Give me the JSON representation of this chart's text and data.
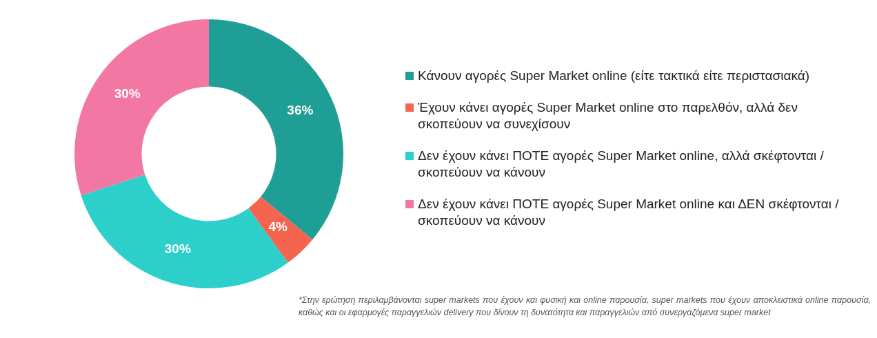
{
  "chart_data": {
    "type": "donut",
    "categories": [
      "Κάνουν αγορές Super Market online (είτε τακτικά είτε περιστασιακά)",
      "Έχουν κάνει αγορές Super Market online στο παρελθόν, αλλά δεν σκοπεύουν να συνεχίσουν",
      "Δεν έχουν κάνει ΠΟΤΕ αγορές Super Market online, αλλά σκέφτονται / σκοπεύουν να κάνουν",
      "Δεν έχουν κάνει ΠΟΤΕ αγορές Super Market online και ΔΕΝ σκέφτονται / σκοπεύουν να κάνουν"
    ],
    "values": [
      36,
      4,
      30,
      30
    ],
    "colors": [
      "#1f9e96",
      "#f4644f",
      "#2dcfcb",
      "#f277a3"
    ],
    "value_labels": [
      "36%",
      "4%",
      "30%",
      "30%"
    ],
    "legend": "right",
    "annotations": [
      "*Στην ερώτηση περιλαμβάνονται super markets που έχουν και φυσική και online παρουσία, super markets που έχουν αποκλειστικά online παρουσία, καθώς και οι εφαρμογές παραγγελιών delivery που δίνουν τη δυνατότητα και παραγγελιών από συνεργαζόμενα super market"
    ]
  }
}
